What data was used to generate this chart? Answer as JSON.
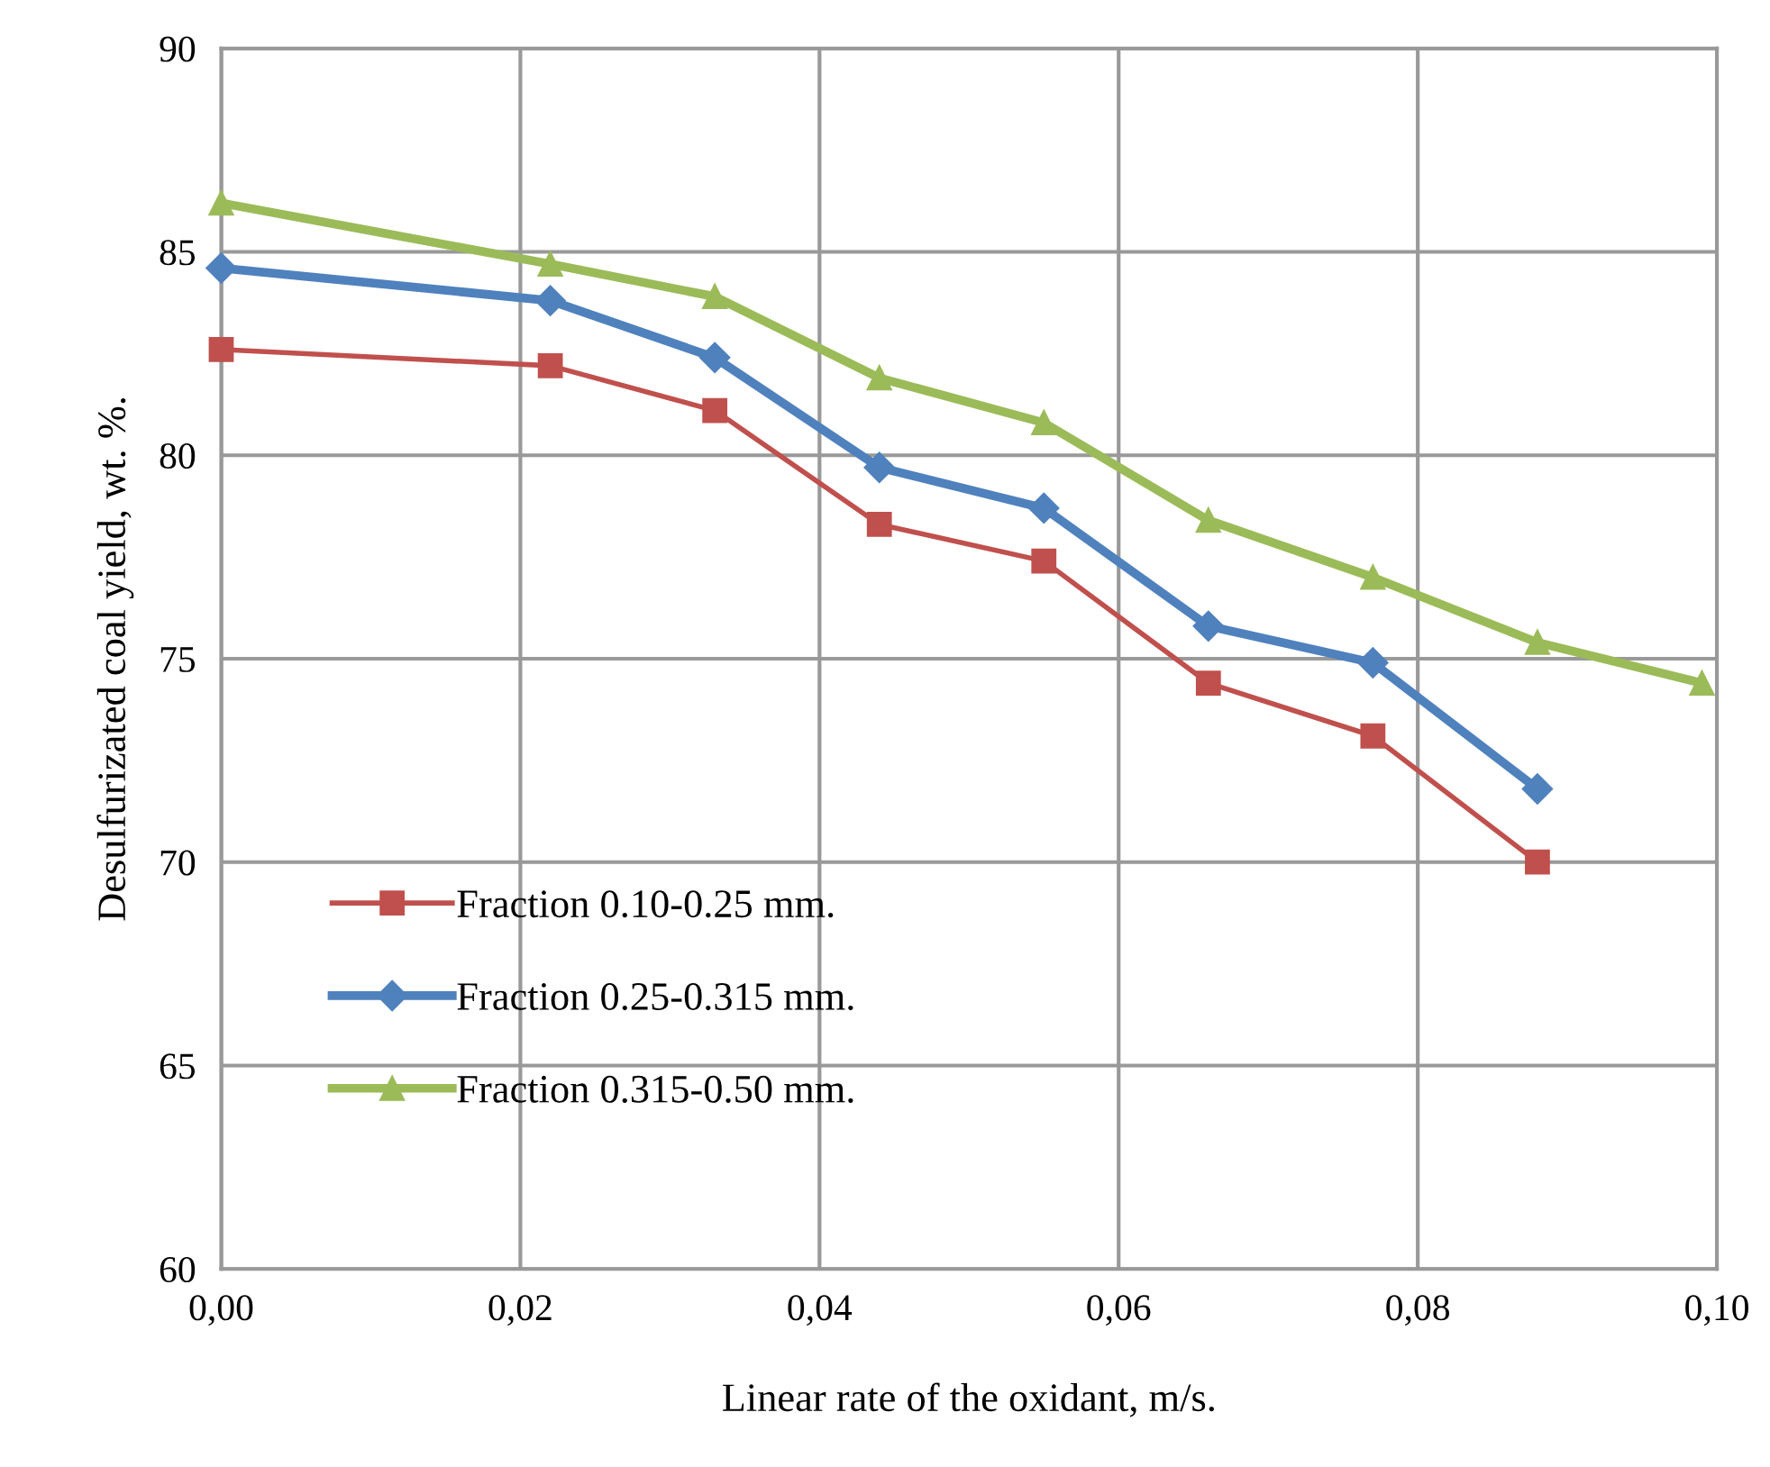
{
  "chart_data": {
    "type": "line",
    "xlabel": "Linear rate of the oxidant, m/s.",
    "ylabel": "Desulfurizated coal yield, wt. %.",
    "series": [
      {
        "name": "Fraction 0.10-0.25 mm.",
        "color": "#c0504d",
        "marker": "square",
        "x": [
          0,
          0.022,
          0.033,
          0.044,
          0.055,
          0.066,
          0.077,
          0.088
        ],
        "values": [
          82.6,
          82.2,
          81.1,
          78.3,
          77.4,
          74.4,
          73.1,
          70.0
        ]
      },
      {
        "name": "Fraction 0.25-0.315 mm.",
        "color": "#4f81bd",
        "marker": "diamond",
        "x": [
          0,
          0.022,
          0.033,
          0.044,
          0.055,
          0.066,
          0.077,
          0.088
        ],
        "values": [
          84.6,
          83.8,
          82.4,
          79.7,
          78.7,
          75.8,
          74.9,
          71.8
        ]
      },
      {
        "name": "Fraction 0.315-0.50 mm.",
        "color": "#9bbb59",
        "marker": "triangle",
        "x": [
          0,
          0.022,
          0.033,
          0.044,
          0.055,
          0.066,
          0.077,
          0.088,
          0.099
        ],
        "values": [
          86.2,
          84.7,
          83.9,
          81.9,
          80.8,
          78.4,
          77.0,
          75.4,
          74.4
        ]
      }
    ],
    "xlim": [
      0,
      0.1
    ],
    "ylim": [
      60,
      90
    ],
    "xticks": [
      {
        "value": 0,
        "label": "0,00"
      },
      {
        "value": 0.02,
        "label": "0,02"
      },
      {
        "value": 0.04,
        "label": "0,04"
      },
      {
        "value": 0.06,
        "label": "0,06"
      },
      {
        "value": 0.08,
        "label": "0,08"
      },
      {
        "value": 0.1,
        "label": "0,10"
      }
    ],
    "yticks": [
      60,
      65,
      70,
      75,
      80,
      85,
      90
    ],
    "grid": true,
    "legend": "bottom left",
    "line_style": "solid"
  }
}
